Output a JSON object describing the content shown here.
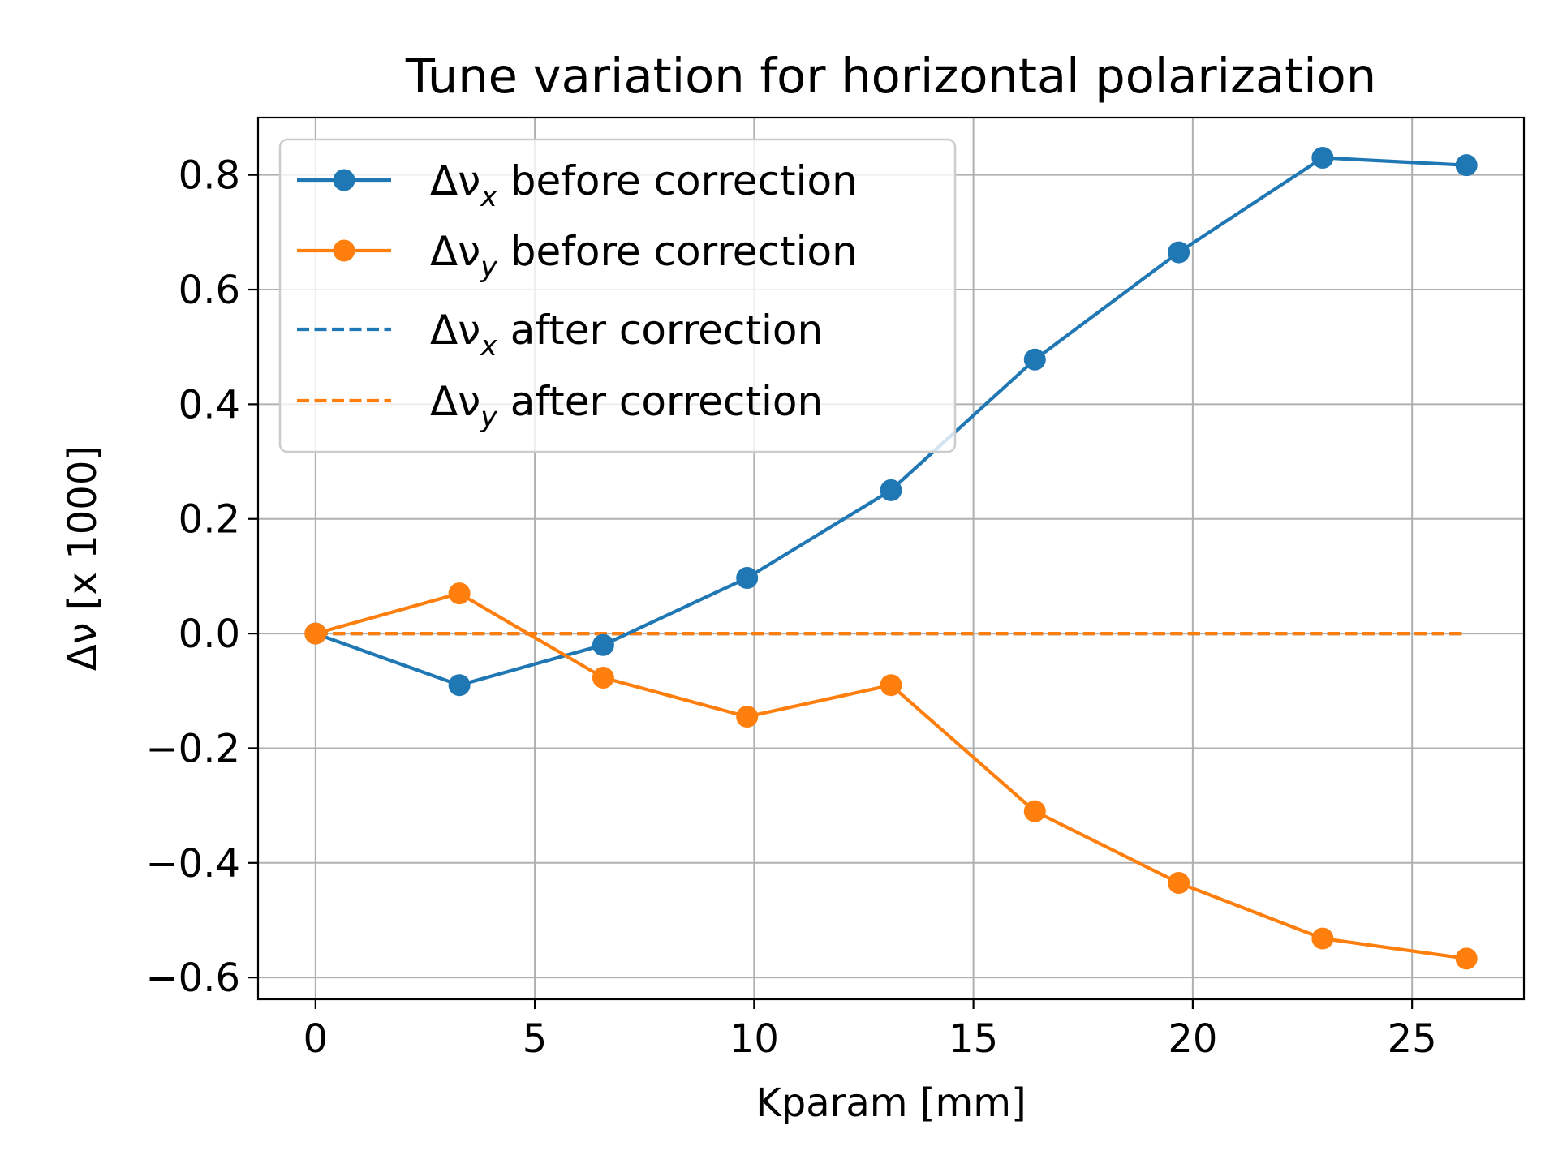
{
  "chart_data": {
    "type": "line",
    "title": "Tune variation for horizontal polarization",
    "xlabel": "Kparam [mm]",
    "ylabel": "Δν [x 1000]",
    "xlim": [
      -1.31,
      27.55
    ],
    "ylim": [
      -0.638,
      0.9
    ],
    "xticks": [
      0,
      5,
      10,
      15,
      20,
      25
    ],
    "yticks": [
      -0.6,
      -0.4,
      -0.2,
      0.0,
      0.2,
      0.4,
      0.6,
      0.8
    ],
    "xtick_labels": [
      "0",
      "5",
      "10",
      "15",
      "20",
      "25"
    ],
    "ytick_labels": [
      "−0.6",
      "−0.4",
      "−0.2",
      "0.0",
      "0.2",
      "0.4",
      "0.6",
      "0.8"
    ],
    "grid": true,
    "legend_position": "top-left",
    "x": [
      0,
      3.28,
      6.56,
      9.84,
      13.12,
      16.4,
      19.68,
      22.96,
      26.24
    ],
    "series": [
      {
        "name": "Δν_x before correction",
        "name_base": "Δν",
        "name_sub": "x",
        "name_rest": " before correction",
        "color": "#1f77b4",
        "style": "solid-marker",
        "values": [
          0.0,
          -0.09,
          -0.02,
          0.097,
          0.25,
          0.478,
          0.665,
          0.83,
          0.817
        ]
      },
      {
        "name": "Δν_y before correction",
        "name_base": "Δν",
        "name_sub": "y",
        "name_rest": " before correction",
        "color": "#ff7f0e",
        "style": "solid-marker",
        "values": [
          0.0,
          0.07,
          -0.077,
          -0.145,
          -0.09,
          -0.31,
          -0.435,
          -0.532,
          -0.567
        ]
      },
      {
        "name": "Δν_x after correction",
        "name_base": "Δν",
        "name_sub": "x",
        "name_rest": " after correction",
        "color": "#1f77b4",
        "style": "dashed",
        "values": [
          0,
          0,
          0,
          0,
          0,
          0,
          0,
          0,
          0
        ]
      },
      {
        "name": "Δν_y after correction",
        "name_base": "Δν",
        "name_sub": "y",
        "name_rest": " after correction",
        "color": "#ff7f0e",
        "style": "dashed",
        "values": [
          0,
          0,
          0,
          0,
          0,
          0,
          0,
          0,
          0
        ]
      }
    ]
  }
}
